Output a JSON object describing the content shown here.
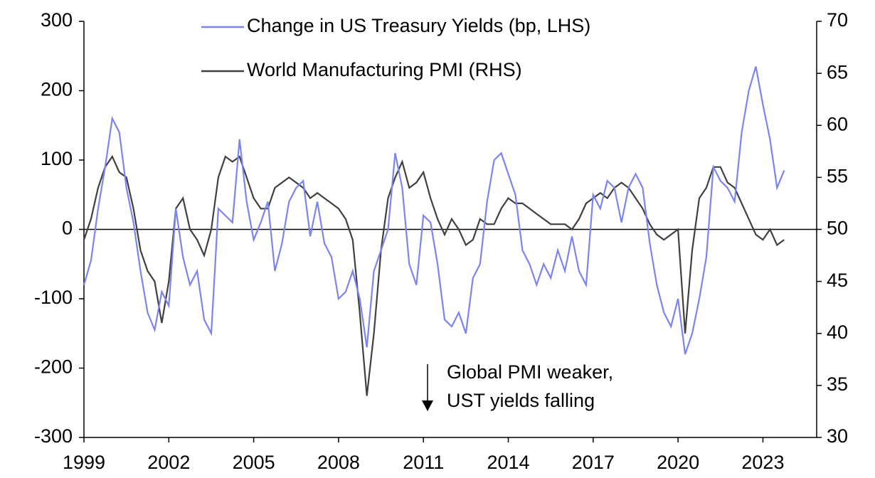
{
  "chart_data": {
    "type": "line",
    "x": [
      1999,
      1999.25,
      1999.5,
      1999.75,
      2000,
      2000.25,
      2000.5,
      2000.75,
      2001,
      2001.25,
      2001.5,
      2001.75,
      2002,
      2002.25,
      2002.5,
      2002.75,
      2003,
      2003.25,
      2003.5,
      2003.75,
      2004,
      2004.25,
      2004.5,
      2004.75,
      2005,
      2005.25,
      2005.5,
      2005.75,
      2006,
      2006.25,
      2006.5,
      2006.75,
      2007,
      2007.25,
      2007.5,
      2007.75,
      2008,
      2008.25,
      2008.5,
      2008.75,
      2009,
      2009.25,
      2009.5,
      2009.75,
      2010,
      2010.25,
      2010.5,
      2010.75,
      2011,
      2011.25,
      2011.5,
      2011.75,
      2012,
      2012.25,
      2012.5,
      2012.75,
      2013,
      2013.25,
      2013.5,
      2013.75,
      2014,
      2014.25,
      2014.5,
      2014.75,
      2015,
      2015.25,
      2015.5,
      2015.75,
      2016,
      2016.25,
      2016.5,
      2016.75,
      2017,
      2017.25,
      2017.5,
      2017.75,
      2018,
      2018.25,
      2018.5,
      2018.75,
      2019,
      2019.25,
      2019.5,
      2019.75,
      2020,
      2020.25,
      2020.5,
      2020.75,
      2021,
      2021.25,
      2021.5,
      2021.75,
      2022,
      2022.25,
      2022.5,
      2022.75,
      2023,
      2023.25,
      2023.5,
      2023.75
    ],
    "series": [
      {
        "name": "Change in US Treasury Yields (bp, LHS)",
        "color": "#7b84f0",
        "axis": "y",
        "values": [
          -80,
          -45,
          30,
          90,
          160,
          140,
          60,
          10,
          -60,
          -120,
          -145,
          -90,
          -110,
          30,
          -40,
          -80,
          -60,
          -130,
          -150,
          30,
          20,
          10,
          130,
          40,
          -15,
          10,
          40,
          -60,
          -20,
          40,
          60,
          70,
          -10,
          40,
          -20,
          -40,
          -100,
          -90,
          -60,
          -100,
          -170,
          -60,
          -30,
          0,
          110,
          60,
          -50,
          -80,
          20,
          10,
          -50,
          -130,
          -140,
          -120,
          -150,
          -70,
          -50,
          40,
          100,
          110,
          80,
          50,
          -30,
          -50,
          -80,
          -50,
          -70,
          -30,
          -60,
          -10,
          -60,
          -80,
          50,
          30,
          70,
          60,
          10,
          60,
          80,
          60,
          -20,
          -80,
          -120,
          -140,
          -100,
          -180,
          -150,
          -100,
          -40,
          90,
          70,
          60,
          40,
          140,
          200,
          235,
          180,
          130,
          60,
          85
        ]
      },
      {
        "name": "World Manufacturing PMI (RHS)",
        "color": "#404040",
        "axis": "y2",
        "values": [
          49,
          51,
          54,
          56,
          57,
          55.5,
          55,
          52,
          48,
          46,
          45,
          41,
          45,
          52,
          53,
          50,
          49,
          47.5,
          50,
          55,
          57,
          56.5,
          57,
          55,
          53,
          52,
          52,
          54,
          54.5,
          55,
          54.5,
          54,
          53,
          53.5,
          53,
          52.5,
          52,
          51,
          49,
          42,
          34,
          40,
          48,
          53,
          55,
          56.5,
          54,
          54.5,
          55.5,
          53,
          51,
          49.5,
          51,
          50,
          48.5,
          49,
          51,
          50.5,
          50.5,
          52,
          53,
          52.5,
          52.5,
          52,
          51.5,
          51,
          50.5,
          50.5,
          50.5,
          50,
          51,
          52.5,
          53,
          53.5,
          53,
          54,
          54.5,
          54,
          53,
          52,
          50.5,
          49.5,
          49,
          49.5,
          50,
          40,
          48,
          53,
          54,
          56,
          56,
          54.5,
          54,
          52.5,
          51,
          49.5,
          49,
          50,
          48.5,
          49
        ]
      }
    ],
    "xlim": [
      1999,
      2024.9
    ],
    "xticks": [
      1999,
      2002,
      2005,
      2008,
      2011,
      2014,
      2017,
      2020,
      2023
    ],
    "ylim": [
      -300,
      300
    ],
    "yticks": [
      -300,
      -200,
      -100,
      0,
      100,
      200,
      300
    ],
    "y2lim": [
      30,
      70
    ],
    "y2ticks": [
      30,
      35,
      40,
      45,
      50,
      55,
      60,
      65,
      70
    ],
    "annotation": [
      "Global PMI weaker,",
      "UST yields falling"
    ],
    "legend": "top"
  }
}
